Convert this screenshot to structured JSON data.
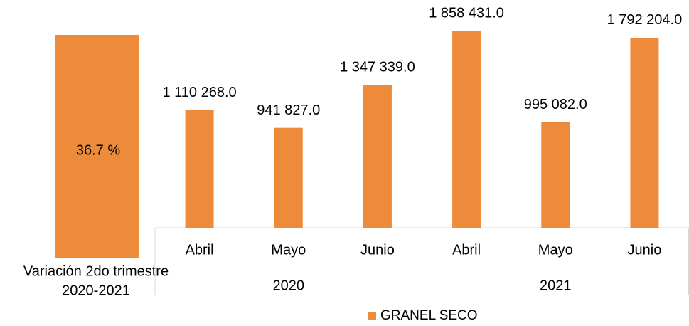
{
  "chart_data": {
    "type": "bar",
    "categories": [
      "Abril",
      "Mayo",
      "Junio",
      "Abril",
      "Mayo",
      "Junio"
    ],
    "groups": [
      "2020",
      "2021"
    ],
    "series": [
      {
        "name": "GRANEL SECO",
        "color": "#ed8b3a",
        "values": [
          1110268,
          941827,
          1347339,
          1858431,
          995082,
          1792204
        ],
        "value_labels": [
          "1 110 268.0",
          "941 827.0",
          "1 347 339.0",
          "1 858 431.0",
          "995 082.0",
          "1 792 204.0"
        ]
      }
    ],
    "ylim": [
      0,
      2000000
    ],
    "annotation": {
      "value": 36.7,
      "label": "36.7 %",
      "caption": [
        "Variación 2do trimestre",
        "2020-2021"
      ]
    },
    "legend": "bottom"
  }
}
